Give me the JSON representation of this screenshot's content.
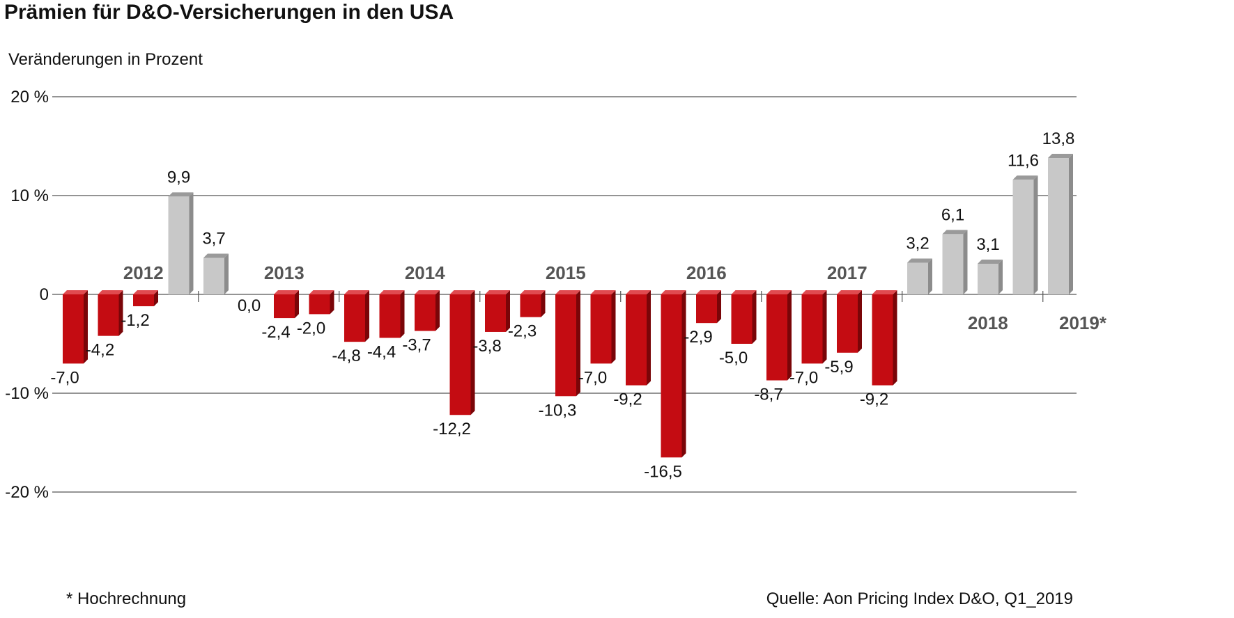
{
  "title": "Prämien für D&O-Versicherungen in den USA",
  "subtitle": "Veränderungen in Prozent",
  "footnote": "* Hochrechnung",
  "source": "Quelle: Aon Pricing Index D&O, Q1_2019",
  "colors": {
    "negative": "#c40c12",
    "negative_side": "#7a0508",
    "negative_top": "#e04a4f",
    "positive": "#c8c8c8",
    "positive_side": "#8c8c8c",
    "positive_top": "#9a9a9a",
    "grid": "#555555",
    "year_label": "#555555"
  },
  "chart_data": {
    "type": "bar",
    "title": "Prämien für D&O-Versicherungen in den USA",
    "ylabel": "Veränderungen in Prozent",
    "ylim": [
      -20,
      20
    ],
    "yticks": [
      20,
      10,
      0,
      -10,
      -20
    ],
    "ytick_labels": [
      "20 %",
      "10 %",
      "0",
      "-10 %",
      "-20 %"
    ],
    "grid": true,
    "years": [
      {
        "label": "2012",
        "values": [
          -7.0,
          -4.2,
          -1.2,
          9.9
        ],
        "labels": [
          "-7,0",
          "-4,2",
          "-1,2",
          "9,9"
        ],
        "label_position": "above"
      },
      {
        "label": "2013",
        "values": [
          3.7,
          0.0,
          -2.4,
          -2.0
        ],
        "labels": [
          "3,7",
          "0,0",
          "-2,4",
          "-2,0"
        ],
        "label_position": "above"
      },
      {
        "label": "2014",
        "values": [
          -4.8,
          -4.4,
          -3.7,
          -12.2
        ],
        "labels": [
          "-4,8",
          "-4,4",
          "-3,7",
          "-12,2"
        ],
        "label_position": "above"
      },
      {
        "label": "2015",
        "values": [
          -3.8,
          -2.3,
          -10.3,
          -7.0
        ],
        "labels": [
          "-3,8",
          "-2,3",
          "-10,3",
          "-7,0"
        ],
        "label_position": "above"
      },
      {
        "label": "2016",
        "values": [
          -9.2,
          -16.5,
          -2.9,
          -5.0
        ],
        "labels": [
          "-9,2",
          "-16,5",
          "-2,9",
          "-5,0"
        ],
        "label_position": "above"
      },
      {
        "label": "2017",
        "values": [
          -8.7,
          -7.0,
          -5.9,
          -9.2
        ],
        "labels": [
          "-8,7",
          "-7,0",
          "-5,9",
          "-9,2"
        ],
        "label_position": "above"
      },
      {
        "label": "2018",
        "values": [
          3.2,
          6.1,
          3.1,
          11.6
        ],
        "labels": [
          "3,2",
          "6,1",
          "3,1",
          "11,6"
        ],
        "label_position": "below"
      },
      {
        "label": "2019*",
        "values": [
          13.8
        ],
        "labels": [
          "13,8"
        ],
        "label_position": "below"
      }
    ]
  }
}
